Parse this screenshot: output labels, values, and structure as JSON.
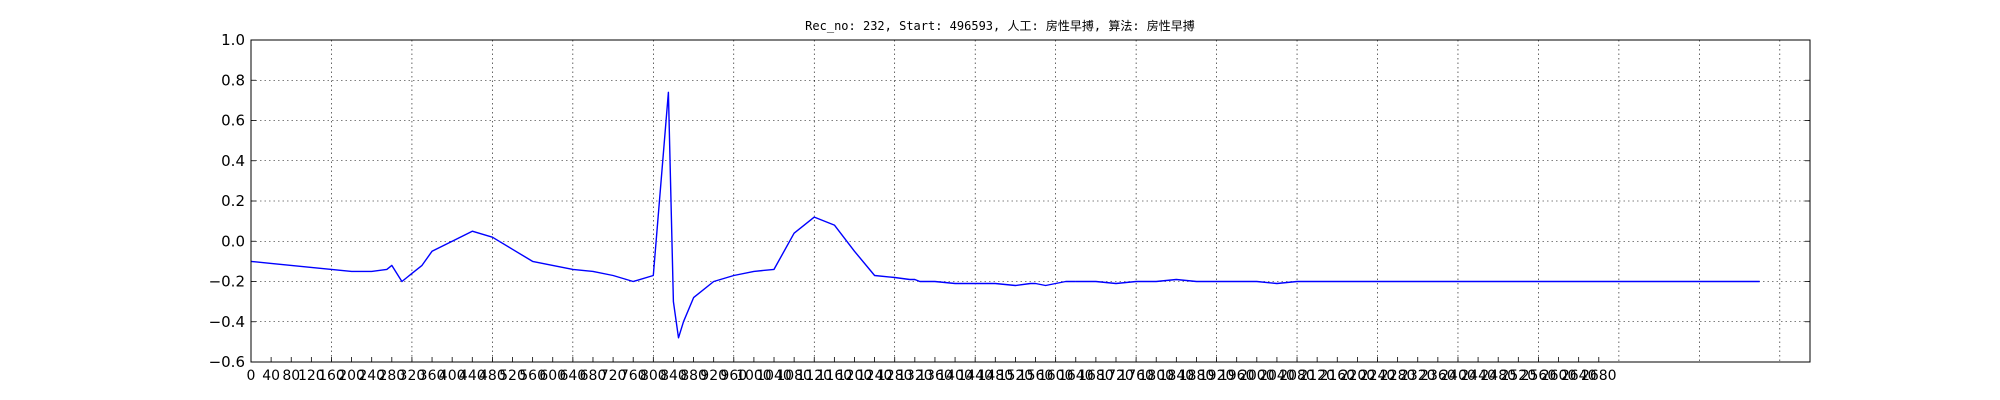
{
  "chart_data": {
    "type": "line",
    "title": "Rec_no: 232, Start: 496593, 人工: 房性早搏, 算法: 房性早搏",
    "xlabel": "",
    "ylabel": "",
    "ylim": [
      -0.6,
      1.0
    ],
    "xlim": [
      0,
      3100
    ],
    "grid": true,
    "yticks": [
      1.0,
      0.8,
      0.6,
      0.4,
      0.2,
      0.0,
      -0.2,
      -0.4,
      -0.6
    ],
    "ytick_labels": [
      "1.0",
      "0.8",
      "0.6",
      "0.4",
      "0.2",
      "0.0",
      "−0.2",
      "−0.4",
      "−0.6"
    ],
    "xticks": [
      0,
      40,
      80,
      120,
      160,
      200,
      240,
      280,
      320,
      360,
      400,
      440,
      480,
      520,
      560,
      600,
      640,
      680,
      720,
      760,
      800,
      840,
      880,
      920,
      960,
      1000,
      1040,
      1080,
      1120,
      1160,
      1200,
      1240,
      1280,
      1320,
      1360,
      1400,
      1440,
      1480,
      1520,
      1560,
      1600,
      1640,
      1680,
      1720,
      1760,
      1800,
      1840,
      1880,
      1920,
      1960,
      2000,
      2040,
      2080,
      2120,
      2160,
      2200,
      2240,
      2280,
      2320,
      2360,
      2400,
      2440,
      2480,
      2520,
      2560,
      2600,
      2640,
      2680
    ],
    "xtick_labels": [
      "0",
      "40",
      "80",
      "120",
      "160",
      "200",
      "240",
      "280",
      "320",
      "360",
      "400",
      "440",
      "480",
      "520",
      "560",
      "600",
      "640",
      "680",
      "720",
      "760",
      "800",
      "840",
      "880",
      "920",
      "960",
      "1000",
      "1040",
      "1080",
      "1120",
      "1160",
      "1200",
      "1240",
      "1280",
      "1320",
      "1360",
      "1400",
      "1440",
      "1480",
      "1520",
      "1560",
      "1600",
      "1640",
      "1680",
      "1720",
      "1760",
      "1800",
      "1840",
      "1880",
      "1920",
      "1960",
      "2000",
      "2040",
      "2080",
      "2120",
      "2160",
      "2200",
      "2240",
      "2280",
      "2320",
      "2360",
      "2400",
      "2440",
      "2480",
      "2520",
      "2560",
      "2600",
      "2640",
      "2680"
    ],
    "colors": {
      "normal": "#0000ff",
      "highlight": "#ff0000"
    },
    "series": [
      {
        "color": "normal",
        "x": [
          0,
          40,
          80,
          120,
          160,
          200,
          240,
          270,
          280,
          290,
          300,
          310,
          320,
          340,
          360,
          400,
          440,
          480,
          520,
          560,
          600,
          640,
          680,
          720,
          760,
          800,
          830,
          840,
          850,
          860,
          880,
          920,
          960,
          1000,
          1040,
          1080,
          1120,
          1160,
          1200,
          1240,
          1280,
          1310,
          1320,
          1330,
          1340,
          1360,
          1400,
          1440,
          1480,
          1520,
          1550,
          1560,
          1580,
          1600,
          1620,
          1640
        ],
        "y": [
          -0.1,
          -0.11,
          -0.12,
          -0.13,
          -0.14,
          -0.15,
          -0.15,
          -0.14,
          -0.12,
          -0.16,
          -0.2,
          -0.18,
          -0.16,
          -0.12,
          -0.05,
          0.0,
          0.05,
          0.02,
          -0.04,
          -0.1,
          -0.12,
          -0.14,
          -0.15,
          -0.17,
          -0.2,
          -0.17,
          0.74,
          -0.3,
          -0.48,
          -0.4,
          -0.28,
          -0.2,
          -0.17,
          -0.15,
          -0.14,
          0.04,
          0.12,
          0.08,
          -0.05,
          -0.17,
          -0.18,
          -0.19,
          -0.19,
          -0.2,
          -0.2,
          -0.2,
          -0.21,
          -0.21,
          -0.21,
          -0.22,
          -0.21,
          -0.21,
          -0.22,
          -0.21,
          -0.2,
          -0.2
        ]
      },
      {
        "color": "normal",
        "x": [
          1640,
          1680,
          1720,
          1760,
          1800,
          1840,
          1880,
          1920,
          1960,
          2000,
          2040,
          2080,
          2120,
          2160,
          2200,
          2240,
          2280,
          2320,
          2360,
          2400,
          2440,
          2480,
          2520,
          2560,
          2600,
          2640,
          2680,
          2720,
          2760,
          2800,
          2840,
          2880,
          2920,
          2960,
          3000
        ],
        "y": [
          -0.2,
          -0.2,
          -0.21,
          -0.2,
          -0.2,
          -0.19,
          -0.2,
          -0.2,
          -0.2,
          -0.2,
          -0.21,
          -0.2,
          -0.2,
          -0.2,
          -0.2,
          -0.2,
          -0.2,
          -0.2,
          -0.2,
          -0.2,
          -0.2,
          -0.2,
          -0.2,
          -0.2,
          -0.2,
          -0.2,
          -0.2,
          -0.2,
          -0.2,
          -0.2,
          -0.2,
          -0.2,
          -0.2,
          -0.2,
          -0.2
        ]
      }
    ]
  }
}
